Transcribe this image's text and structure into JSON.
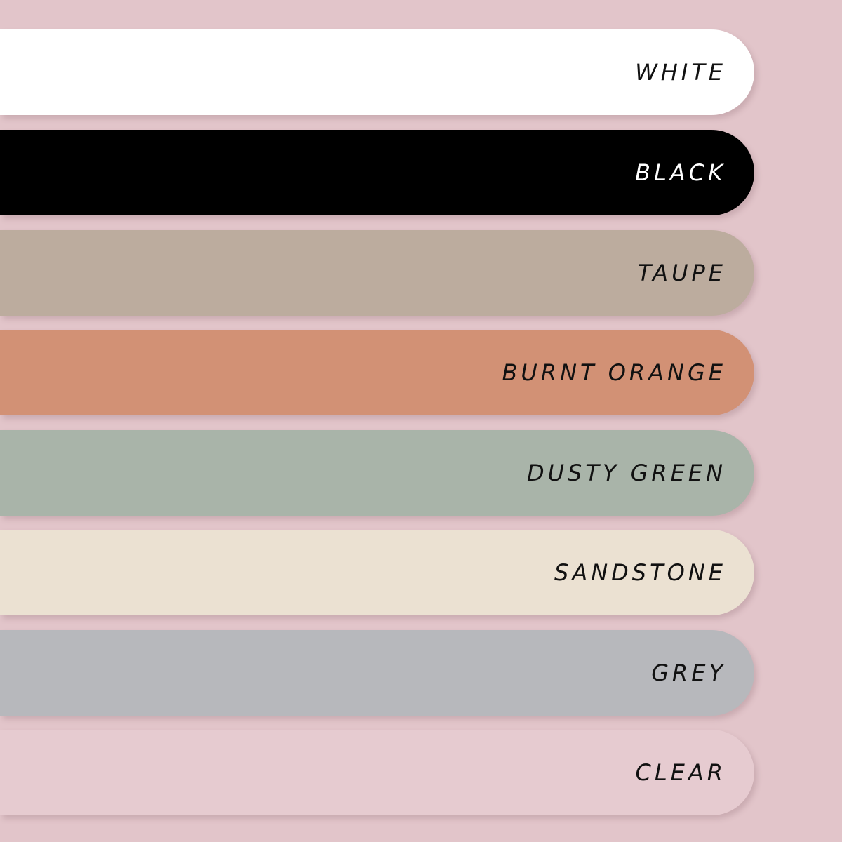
{
  "swatches": [
    {
      "label": "WHITE",
      "color": "#ffffff",
      "text_color": "#111111"
    },
    {
      "label": "BLACK",
      "color": "#000000",
      "text_color": "#ffffff"
    },
    {
      "label": "TAUPE",
      "color": "#bcac9e",
      "text_color": "#111111"
    },
    {
      "label": "BURNT ORANGE",
      "color": "#d29175",
      "text_color": "#111111"
    },
    {
      "label": "DUSTY GREEN",
      "color": "#a9b4a9",
      "text_color": "#111111"
    },
    {
      "label": "SANDSTONE",
      "color": "#ebe1d2",
      "text_color": "#111111"
    },
    {
      "label": "GREY",
      "color": "#b7b8bc",
      "text_color": "#111111"
    },
    {
      "label": "CLEAR",
      "color": "#e6cbd0",
      "text_color": "#111111"
    }
  ]
}
